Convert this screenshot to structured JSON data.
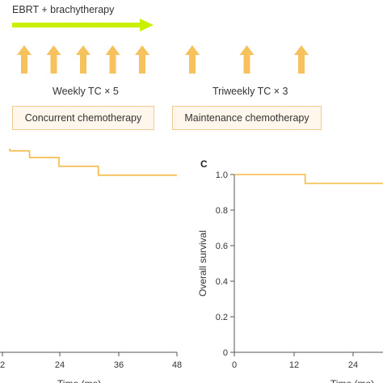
{
  "schema": {
    "ebrt_label": "EBRT + brachytherapy",
    "weekly_label": "Weekly TC × 5",
    "triweekly_label": "Triweekly TC × 3",
    "concurrent_label": "Concurrent chemotherapy",
    "maintenance_label": "Maintenance chemotherapy",
    "weekly_arrow_count": 5,
    "triweekly_arrow_count": 3,
    "colors": {
      "ebrt_arrow": "#c8f000",
      "dose_arrow": "#f7c25e",
      "box_border": "#f3c98f",
      "box_fill": "#fff6ec",
      "curve": "#f5b944"
    }
  },
  "chart_data": [
    {
      "type": "line",
      "panel_label": "",
      "xlabel": "Time (mo)",
      "ylabel": "",
      "x_ticks": [
        "2",
        "24",
        "36",
        "48"
      ],
      "xlim": [
        12,
        48
      ],
      "ylim": [
        0,
        1.0
      ],
      "series": [
        {
          "x": [
            12,
            14,
            14,
            18,
            18,
            24,
            24,
            32,
            32,
            48
          ],
          "y": [
            0.94,
            0.94,
            0.91,
            0.91,
            0.88,
            0.88,
            0.84,
            0.84,
            0.8,
            0.8
          ]
        }
      ]
    },
    {
      "type": "line",
      "panel_label": "C",
      "xlabel": "Time (mo)",
      "ylabel": "Overall survival",
      "x_ticks": [
        "0",
        "12",
        "24"
      ],
      "y_ticks": [
        "0",
        "0.2",
        "0.4",
        "0.6",
        "0.8",
        "1.0"
      ],
      "xlim": [
        0,
        30
      ],
      "ylim": [
        0,
        1.0
      ],
      "series": [
        {
          "x": [
            0,
            14,
            14,
            30
          ],
          "y": [
            1.0,
            1.0,
            0.95,
            0.95
          ]
        }
      ]
    }
  ]
}
